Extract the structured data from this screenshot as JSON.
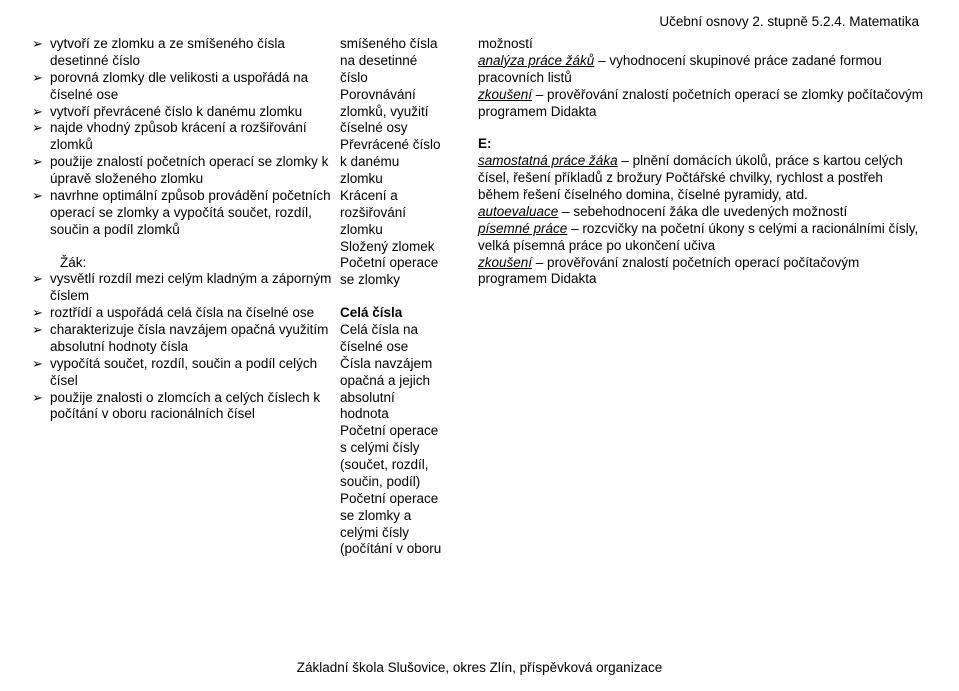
{
  "header_right": "Učební osnovy 2. stupně  5.2.4. Matematika",
  "footer": "Základní škola Slušovice, okres Zlín, příspěvková organizace",
  "block1": {
    "col1": [
      "vytvoří ze zlomku a ze smíšeného čísla desetinné číslo",
      "porovná zlomky dle velikosti a uspořádá na číselné ose",
      "vytvoří převrácené číslo k danému zlomku",
      "najde vhodný způsob krácení a rozšiřování zlomků",
      "použije znalostí početních operací se zlomky k úpravě složeného zlomku",
      "navrhne optimální způsob provádění početních operací se zlomky a vypočítá součet, rozdíl, součin a podíl zlomků"
    ],
    "col2_lines": [
      "smíšeného čísla",
      "na desetinné",
      "číslo",
      "Porovnávání",
      "zlomků, využití",
      "číselné osy",
      "Převrácené číslo",
      "k danému",
      "zlomku",
      "Krácení a",
      "rozšiřování",
      "zlomku",
      "Složený zlomek",
      "Početní   operace",
      "se zlomky"
    ],
    "col3": {
      "l1": "možností",
      "l2a": "analýza práce žáků",
      "l2b": " – vyhodnocení skupinové práce zadané formou pracovních listů",
      "l3a": "zkoušení",
      "l3b": " – prověřování znalostí početních operací se zlomky počítačovým programem Didakta"
    }
  },
  "block2": {
    "zak_label": "Žák:",
    "col1": [
      "vysvětlí rozdíl mezi celým kladným a záporným číslem",
      "roztřídí a uspořádá celá čísla na číselné ose",
      "charakterizuje čísla navzájem opačná využitím absolutní hodnoty čísla",
      "vypočítá součet, rozdíl, součin a podíl celých čísel",
      "použije znalosti o zlomcích a celých číslech k počítání v oboru racionálních čísel"
    ],
    "col2_title": "Celá čísla",
    "col2_lines": [
      "Celá čísla na",
      "číselné ose",
      "Čísla navzájem",
      "opačná a jejich",
      "absolutní",
      "hodnota",
      "Početní operace",
      "s celými čísly",
      "(součet, rozdíl,",
      "součin, podíl)",
      "Početní operace",
      "se zlomky a",
      "celými čísly",
      "(počítání v oboru"
    ],
    "col3": {
      "e_label": "E:",
      "l1a": "samostatná práce žáka",
      "l1b": " – plnění domácích úkolů, práce s kartou celých čísel, řešení příkladů z brožury Počtářské chvilky, rychlost a postřeh během řešení číselného domina, číselné pyramidy, atd.",
      "l2a": "autoevaluace",
      "l2b": " – sebehodnocení žáka dle uvedených možností",
      "l3a": "písemné práce",
      "l3b": " – rozcvičky na početní úkony s celými a racionálními čísly, velká písemná práce po ukončení učiva",
      "l4a": "zkoušení",
      "l4b": " – prověřování znalostí početních operací počítačovým programem Didakta"
    }
  }
}
